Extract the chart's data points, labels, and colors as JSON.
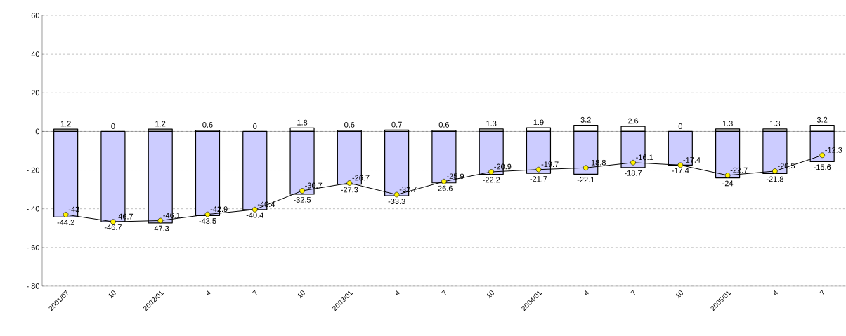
{
  "chart_data": {
    "type": "bar",
    "stacked": true,
    "categories": [
      "2001/07",
      "10",
      "2002/01",
      "4",
      "7",
      "10",
      "2003/01",
      "4",
      "7",
      "10",
      "2004/01",
      "4",
      "7",
      "10",
      "2005/01",
      "4",
      "7"
    ],
    "series": [
      {
        "color": "#ffffff",
        "values": [
          1.2,
          0,
          1.2,
          0.6,
          0,
          1.8,
          0.6,
          0.7,
          0.6,
          1.3,
          1.9,
          3.2,
          2.6,
          0,
          1.3,
          1.3,
          3.2
        ]
      },
      {
        "color": "#ccccff",
        "values": [
          -44.2,
          -46.7,
          -47.3,
          -43.5,
          -40.4,
          -32.5,
          -27.3,
          -33.3,
          -26.6,
          -22.2,
          -21.7,
          -22.1,
          -18.7,
          -17.4,
          -24,
          -21.8,
          -15.6
        ]
      },
      {
        "type": "line",
        "color": "#000000",
        "marker": "circle",
        "values": [
          -43,
          -46.7,
          -46.1,
          -42.9,
          -40.4,
          -30.7,
          -26.7,
          -32.7,
          -25.9,
          -20.9,
          -19.7,
          -18.8,
          -16.1,
          -17.4,
          -22.7,
          -20.5,
          -12.3
        ]
      }
    ],
    "ylim": [
      -80,
      60
    ],
    "yticks": [
      {
        "value": -80,
        "label": "- 80"
      },
      {
        "value": -60,
        "label": "- 60"
      },
      {
        "value": -40,
        "label": "- 40"
      },
      {
        "value": -20,
        "label": "- 20"
      },
      0,
      20,
      40,
      60
    ],
    "grid": "y",
    "data_labels": true
  }
}
